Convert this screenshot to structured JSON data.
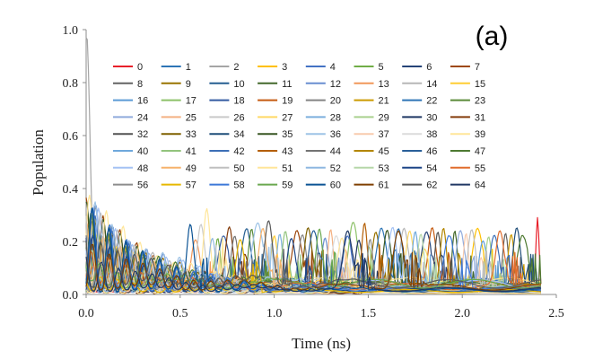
{
  "chart_data": {
    "type": "line",
    "panel_label": "(a)",
    "xlabel": "Time (ns)",
    "ylabel": "Population",
    "xlim": [
      0,
      2.5
    ],
    "ylim": [
      0,
      1.0
    ],
    "xticks": [
      "0.0",
      "0.5",
      "1.0",
      "1.5",
      "2.0",
      "2.5"
    ],
    "yticks": [
      "0.0",
      "0.2",
      "0.4",
      "0.6",
      "0.8",
      "1.0"
    ],
    "xtick_values": [
      0,
      0.5,
      1.0,
      1.5,
      2.0,
      2.5
    ],
    "ytick_values": [
      0,
      0.2,
      0.4,
      0.6,
      0.8,
      1.0
    ],
    "legend_position": "upper-right",
    "series": [
      {
        "name": "0",
        "color": "#e8202a"
      },
      {
        "name": "1",
        "color": "#2e75b6"
      },
      {
        "name": "2",
        "color": "#a5a5a5"
      },
      {
        "name": "3",
        "color": "#ffc000"
      },
      {
        "name": "4",
        "color": "#4472c4"
      },
      {
        "name": "5",
        "color": "#70ad47"
      },
      {
        "name": "6",
        "color": "#264478"
      },
      {
        "name": "7",
        "color": "#9e480e"
      },
      {
        "name": "8",
        "color": "#636363"
      },
      {
        "name": "9",
        "color": "#997300"
      },
      {
        "name": "10",
        "color": "#255e91"
      },
      {
        "name": "11",
        "color": "#43682b"
      },
      {
        "name": "12",
        "color": "#698ed0"
      },
      {
        "name": "13",
        "color": "#f1975a"
      },
      {
        "name": "14",
        "color": "#b7b7b7"
      },
      {
        "name": "15",
        "color": "#ffcd33"
      },
      {
        "name": "16",
        "color": "#5b9bd5"
      },
      {
        "name": "17",
        "color": "#8cc168"
      },
      {
        "name": "18",
        "color": "#335aa1"
      },
      {
        "name": "19",
        "color": "#c55a11"
      },
      {
        "name": "20",
        "color": "#848484"
      },
      {
        "name": "21",
        "color": "#cc9a00"
      },
      {
        "name": "22",
        "color": "#2e75b6"
      },
      {
        "name": "23",
        "color": "#5a8a39"
      },
      {
        "name": "24",
        "color": "#8faadc"
      },
      {
        "name": "25",
        "color": "#f4b183"
      },
      {
        "name": "26",
        "color": "#c9c9c9"
      },
      {
        "name": "27",
        "color": "#ffd966"
      },
      {
        "name": "28",
        "color": "#7cafdd"
      },
      {
        "name": "29",
        "color": "#a9d18e"
      },
      {
        "name": "30",
        "color": "#1f3864"
      },
      {
        "name": "31",
        "color": "#843c0c"
      },
      {
        "name": "32",
        "color": "#525252"
      },
      {
        "name": "33",
        "color": "#7f6000"
      },
      {
        "name": "34",
        "color": "#1f4e79"
      },
      {
        "name": "35",
        "color": "#385723"
      },
      {
        "name": "36",
        "color": "#9dc3e6"
      },
      {
        "name": "37",
        "color": "#f8cbad"
      },
      {
        "name": "38",
        "color": "#dbdbdb"
      },
      {
        "name": "39",
        "color": "#ffe699"
      },
      {
        "name": "40",
        "color": "#6fa8dc"
      },
      {
        "name": "41",
        "color": "#93c47d"
      },
      {
        "name": "42",
        "color": "#3d6fb6"
      },
      {
        "name": "43",
        "color": "#b45f06"
      },
      {
        "name": "44",
        "color": "#737373"
      },
      {
        "name": "45",
        "color": "#b38600"
      },
      {
        "name": "46",
        "color": "#2a6099"
      },
      {
        "name": "47",
        "color": "#4e7a32"
      },
      {
        "name": "48",
        "color": "#a4c2f4"
      },
      {
        "name": "49",
        "color": "#f6b26b"
      },
      {
        "name": "50",
        "color": "#bfbfbf"
      },
      {
        "name": "51",
        "color": "#ffe599"
      },
      {
        "name": "52",
        "color": "#8eb7e0"
      },
      {
        "name": "53",
        "color": "#b6d7a8"
      },
      {
        "name": "54",
        "color": "#1c4587"
      },
      {
        "name": "55",
        "color": "#e06c2c"
      },
      {
        "name": "56",
        "color": "#8c8c8c"
      },
      {
        "name": "57",
        "color": "#e6b800"
      },
      {
        "name": "58",
        "color": "#3c78d8"
      },
      {
        "name": "59",
        "color": "#6aa84f"
      },
      {
        "name": "60",
        "color": "#0b5394"
      },
      {
        "name": "61",
        "color": "#7f3f00"
      },
      {
        "name": "62",
        "color": "#595959"
      },
      {
        "name": "64",
        "color": "#203864"
      }
    ],
    "description_values": {
      "initial_peak_series": "2",
      "initial_peak_value": 0.96,
      "wave_peak_level": 0.2,
      "final_peak_series": "0",
      "final_peak_time": 2.4,
      "final_peak_value": 0.29
    }
  }
}
